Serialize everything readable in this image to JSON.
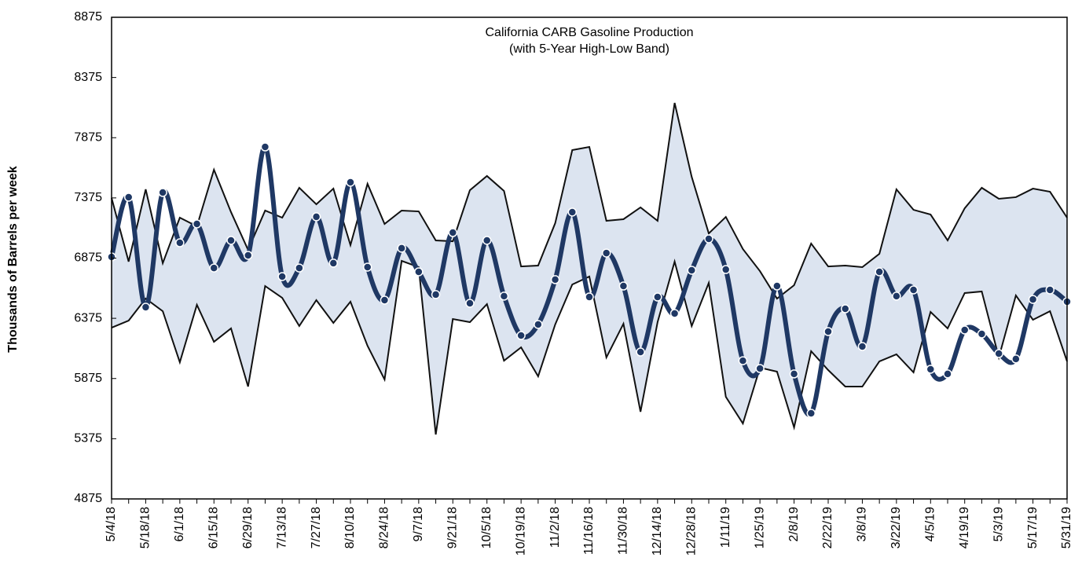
{
  "chart_data": {
    "type": "line-band",
    "title": "California CARB Gasoline Production",
    "subtitle": "(with 5-Year High-Low Band)",
    "y_label": "Thousands of Barrels per week",
    "categories": [
      "5/4/18",
      null,
      "5/18/18",
      null,
      "6/1/18",
      null,
      "6/15/18",
      null,
      "6/29/18",
      null,
      "7/13/18",
      null,
      "7/27/18",
      null,
      "8/10/18",
      null,
      "8/24/18",
      null,
      "9/7/18",
      null,
      "9/21/18",
      null,
      "10/5/18",
      null,
      "10/19/18",
      null,
      "11/2/18",
      null,
      "11/16/18",
      null,
      "11/30/18",
      null,
      "12/14/18",
      null,
      "12/28/18",
      null,
      "1/11/19",
      null,
      "1/25/19",
      null,
      "2/8/19",
      null,
      "2/22/19",
      null,
      "3/8/19",
      null,
      "3/22/19",
      null,
      "4/5/19",
      null,
      "4/19/19",
      null,
      "5/3/19",
      null,
      "5/17/19",
      null,
      "5/31/19"
    ],
    "values": [
      6885,
      7381,
      6467,
      7420,
      7002,
      7159,
      6793,
      7022,
      6898,
      7798,
      6722,
      6793,
      7218,
      6833,
      7505,
      6800,
      6526,
      6957,
      6761,
      6572,
      7087,
      6500,
      7022,
      6559,
      6232,
      6324,
      6696,
      7257,
      6552,
      6917,
      6643,
      6095,
      6552,
      6415,
      6774,
      7035,
      6780,
      6023,
      5958,
      6643,
      5913,
      5586,
      6265,
      6454,
      6141,
      6761,
      6559,
      6611,
      5952,
      5913,
      6278,
      6245,
      6082,
      6037,
      6532,
      6611,
      6513
    ],
    "color": "#1f3864",
    "high": [
      7374,
      6846,
      7446,
      6833,
      7211,
      7139,
      7609,
      7257,
      6943,
      7270,
      7211,
      7459,
      7322,
      7452,
      6983,
      7492,
      7159,
      7270,
      7263,
      7022,
      7015,
      7439,
      7557,
      7433,
      6806,
      6813,
      7165,
      7772,
      7798,
      7185,
      7198,
      7296,
      7185,
      8164,
      7550,
      7080,
      7217,
      6950,
      6767,
      6539,
      6650,
      6996,
      6806,
      6813,
      6800,
      6911,
      7446,
      7276,
      7237,
      7022,
      7289,
      7459,
      7368,
      7381,
      7452,
      7426,
      7211
    ],
    "low": [
      6297,
      6356,
      6539,
      6434,
      6010,
      6487,
      6180,
      6291,
      5808,
      6643,
      6545,
      6311,
      6526,
      6337,
      6513,
      6147,
      5867,
      6852,
      6800,
      5410,
      6369,
      6343,
      6493,
      6023,
      6134,
      5893,
      6324,
      6656,
      6722,
      6050,
      6330,
      5599,
      6343,
      6846,
      6311,
      6669,
      5723,
      5501,
      5965,
      5932,
      5469,
      6102,
      5945,
      5808,
      5808,
      6017,
      6076,
      5926,
      6428,
      6291,
      6585,
      6598,
      6050,
      6565,
      6363,
      6434,
      6017
    ],
    "band_color": "#dce4f0",
    "ylim": [
      4875,
      8875
    ],
    "yticks": [
      4875,
      5375,
      5875,
      6375,
      6875,
      7375,
      7875,
      8375,
      8875
    ]
  }
}
